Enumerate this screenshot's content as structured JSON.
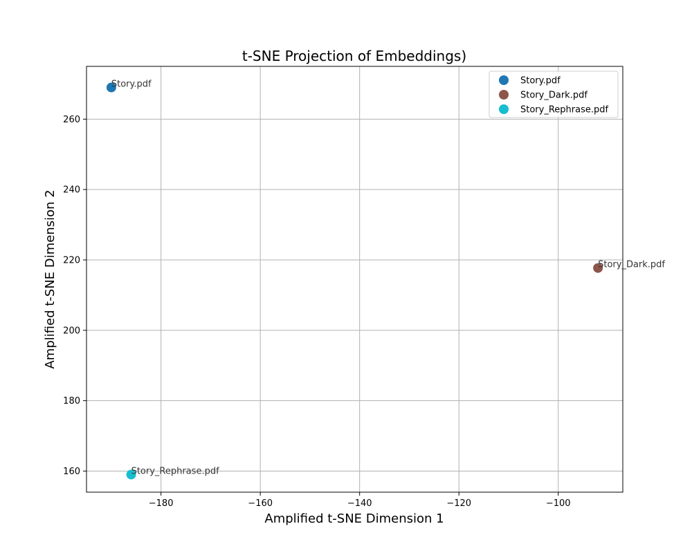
{
  "chart_data": {
    "type": "scatter",
    "title": "t-SNE Projection of Embeddings)",
    "xlabel": "Amplified t-SNE Dimension 1",
    "ylabel": "Amplified t-SNE Dimension 2",
    "xlim": [
      -195,
      -87
    ],
    "ylim": [
      154,
      275
    ],
    "xticks": [
      -180,
      -160,
      -140,
      -120,
      -100
    ],
    "yticks": [
      160,
      180,
      200,
      220,
      240,
      260
    ],
    "grid": true,
    "legend_position": "top-right",
    "series": [
      {
        "name": "Story.pdf",
        "label": "Story.pdf",
        "color": "#1f77b4",
        "x": -190,
        "y": 269
      },
      {
        "name": "Story_Dark.pdf",
        "label": "Story_Dark.pdf",
        "color": "#8c564b",
        "x": -92,
        "y": 217.7
      },
      {
        "name": "Story_Rephrase.pdf",
        "label": "Story_Rephrase.pdf",
        "color": "#17becf",
        "x": -186,
        "y": 159
      }
    ]
  }
}
